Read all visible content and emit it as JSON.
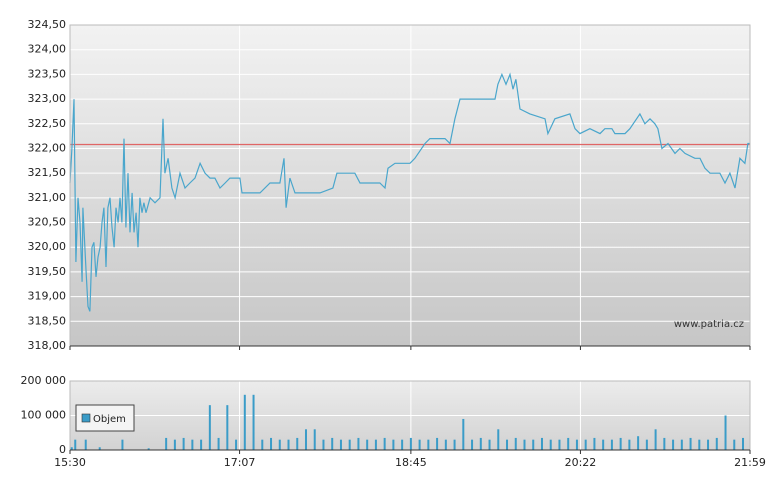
{
  "chart_data": [
    {
      "type": "line",
      "x": [
        930,
        931.1,
        932.3,
        933.4,
        934.6,
        935.7,
        936.9,
        937.4,
        939.2,
        940.3,
        941.4,
        942.6,
        943.7,
        944.9,
        946.0,
        947.2,
        948.3,
        949.4,
        950.6,
        951.7,
        952.9,
        954.0,
        955.2,
        956.3,
        957.5,
        958.6,
        959.7,
        960.9,
        962.0,
        963.2,
        964.3,
        965.5,
        966.6,
        967.8,
        968.9,
        970.0,
        971.2,
        972.3,
        973.5,
        975.8,
        978.6,
        981.5,
        983.2,
        984.3,
        986.1,
        988.3,
        990.1,
        992.9,
        995.8,
        998.6,
        1001.5,
        1004.4,
        1007.2,
        1010.1,
        1012.9,
        1015.8,
        1018.7,
        1021.5,
        1027.2,
        1028.4,
        1038.7,
        1044.4,
        1050.1,
        1052.4,
        1053.6,
        1055.8,
        1058.7,
        1073.0,
        1080.4,
        1082.7,
        1093.0,
        1095.9,
        1107.3,
        1110.2,
        1111.9,
        1115.9,
        1118.8,
        1124.5,
        1127.3,
        1133.1,
        1135.9,
        1144.5,
        1147.4,
        1150.2,
        1153.1,
        1161.7,
        1173.1,
        1174.8,
        1177.1,
        1179.4,
        1181.7,
        1183.4,
        1185.1,
        1187.4,
        1193.1,
        1201.7,
        1203.4,
        1207.4,
        1216.0,
        1218.9,
        1221.7,
        1227.4,
        1233.2,
        1236.0,
        1240.0,
        1241.7,
        1247.5,
        1250.3,
        1256.0,
        1258.9,
        1261.8,
        1264.6,
        1266.3,
        1268.6,
        1272.1,
        1276.1,
        1278.9,
        1281.8,
        1287.5,
        1290.4,
        1293.2,
        1296.1,
        1301.8,
        1304.7,
        1307.5,
        1310.4,
        1313.2,
        1316.1,
        1317.8,
        1319
      ],
      "series": [
        {
          "color": "#4aa6cc",
          "values": [
            321.3,
            322.0,
            323.0,
            319.7,
            321.0,
            320.5,
            319.3,
            320.8,
            319.5,
            318.8,
            318.7,
            320.0,
            320.1,
            319.4,
            319.8,
            320.0,
            320.5,
            320.8,
            319.6,
            320.8,
            321.0,
            320.4,
            320.0,
            320.8,
            320.5,
            321.0,
            320.5,
            322.2,
            320.4,
            321.5,
            320.3,
            321.1,
            320.3,
            320.7,
            320.0,
            321.0,
            320.7,
            320.9,
            320.7,
            321.0,
            320.9,
            321.0,
            322.6,
            321.5,
            321.8,
            321.2,
            321.0,
            321.5,
            321.2,
            321.3,
            321.4,
            321.7,
            321.5,
            321.4,
            321.4,
            321.2,
            321.3,
            321.4,
            321.4,
            321.1,
            321.1,
            321.3,
            321.3,
            321.8,
            320.8,
            321.4,
            321.1,
            321.1,
            321.2,
            321.5,
            321.5,
            321.3,
            321.3,
            321.2,
            321.6,
            321.7,
            321.7,
            321.7,
            321.8,
            322.1,
            322.2,
            322.2,
            322.1,
            322.6,
            323.0,
            323.0,
            323.0,
            323.3,
            323.5,
            323.3,
            323.5,
            323.2,
            323.4,
            322.8,
            322.7,
            322.6,
            322.3,
            322.6,
            322.7,
            322.4,
            322.3,
            322.4,
            322.3,
            322.4,
            322.4,
            322.3,
            322.3,
            322.4,
            322.7,
            322.5,
            322.6,
            322.5,
            322.4,
            322.0,
            322.1,
            321.9,
            322.0,
            321.9,
            321.8,
            321.8,
            321.6,
            321.5,
            321.5,
            321.3,
            321.5,
            321.2,
            321.8,
            321.7,
            322.1,
            322.1
          ]
        }
      ],
      "xlim": [
        930,
        1319
      ],
      "ylim": [
        318,
        324.5
      ],
      "yticks": [
        {
          "value": 318,
          "label": "318,00"
        },
        {
          "value": 318.5,
          "label": "318,50"
        },
        {
          "value": 319,
          "label": "319,00"
        },
        {
          "value": 319.5,
          "label": "319,50"
        },
        {
          "value": 320,
          "label": "320,00"
        },
        {
          "value": 320.5,
          "label": "320,50"
        },
        {
          "value": 321,
          "label": "321,00"
        },
        {
          "value": 321.5,
          "label": "321,50"
        },
        {
          "value": 322,
          "label": "322,00"
        },
        {
          "value": 322.5,
          "label": "322,50"
        },
        {
          "value": 323,
          "label": "323,00"
        },
        {
          "value": 323.5,
          "label": "323,50"
        },
        {
          "value": 324,
          "label": "324,00"
        },
        {
          "value": 324.5,
          "label": "324,50"
        }
      ],
      "reference_line": {
        "value": 322.08,
        "color": "#e06666"
      },
      "watermark": "www.patria.cz",
      "grid": true
    },
    {
      "type": "bar",
      "x": [
        931,
        933,
        939,
        947,
        960,
        975,
        985,
        990,
        995,
        1000,
        1005,
        1010,
        1015,
        1020,
        1025,
        1030,
        1035,
        1040,
        1045,
        1050,
        1055,
        1060,
        1065,
        1070,
        1075,
        1080,
        1085,
        1090,
        1095,
        1100,
        1105,
        1110,
        1115,
        1120,
        1125,
        1130,
        1135,
        1140,
        1145,
        1150,
        1155,
        1160,
        1165,
        1170,
        1175,
        1180,
        1185,
        1190,
        1195,
        1200,
        1205,
        1210,
        1215,
        1220,
        1225,
        1230,
        1235,
        1240,
        1245,
        1250,
        1255,
        1260,
        1265,
        1270,
        1275,
        1280,
        1285,
        1290,
        1295,
        1300,
        1305,
        1310,
        1315
      ],
      "series": [
        {
          "name": "Objem",
          "color": "#3a9cc8",
          "values": [
            8000,
            30000,
            30000,
            8000,
            30000,
            5000,
            35000,
            30000,
            35000,
            30000,
            30000,
            130000,
            35000,
            130000,
            30000,
            160000,
            160000,
            30000,
            35000,
            30000,
            30000,
            35000,
            60000,
            60000,
            30000,
            35000,
            30000,
            30000,
            35000,
            30000,
            30000,
            35000,
            30000,
            30000,
            35000,
            30000,
            30000,
            35000,
            30000,
            30000,
            90000,
            30000,
            35000,
            30000,
            60000,
            30000,
            35000,
            30000,
            30000,
            35000,
            30000,
            30000,
            35000,
            30000,
            30000,
            35000,
            30000,
            30000,
            35000,
            30000,
            40000,
            30000,
            60000,
            35000,
            30000,
            30000,
            35000,
            30000,
            30000,
            35000,
            100000,
            30000,
            35000
          ]
        }
      ],
      "xlim": [
        930,
        1319
      ],
      "xticks": [
        {
          "value": 930,
          "label": "15:30"
        },
        {
          "value": 1027,
          "label": "17:07"
        },
        {
          "value": 1125,
          "label": "18:45"
        },
        {
          "value": 1222,
          "label": "20:22"
        },
        {
          "value": 1319,
          "label": "21:59"
        }
      ],
      "ylim": [
        0,
        200000
      ],
      "yticks": [
        0,
        {
          "value": 100000,
          "label": "100 000"
        },
        {
          "value": 200000,
          "label": "200 000"
        }
      ],
      "legend": "upper-left",
      "grid": true
    }
  ]
}
